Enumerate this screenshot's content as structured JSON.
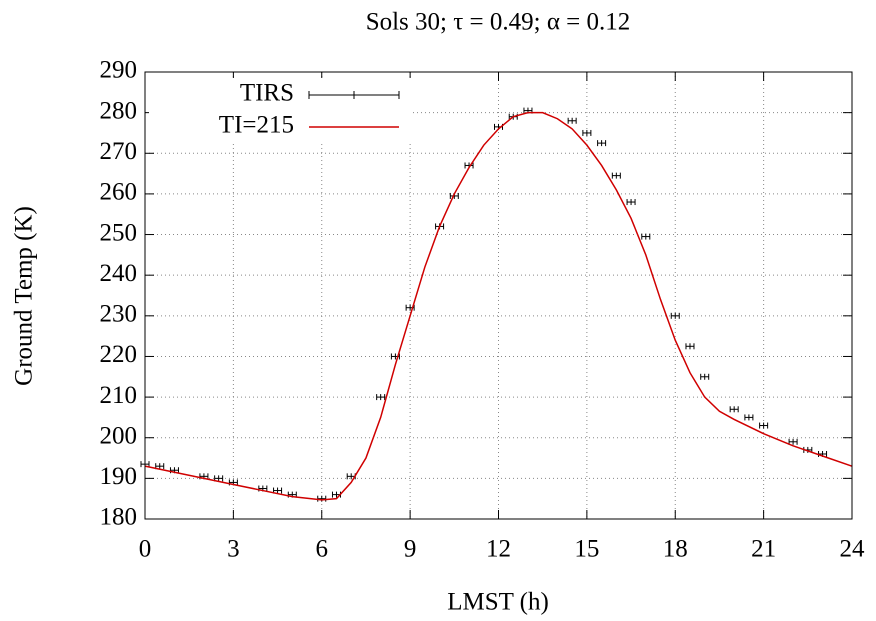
{
  "chart_data": {
    "type": "line",
    "title": "Sols 30; τ = 0.49; α = 0.12",
    "xlabel": "LMST (h)",
    "ylabel": "Ground Temp (K)",
    "xlim": [
      0,
      24
    ],
    "xticks": [
      0,
      3,
      6,
      9,
      12,
      15,
      18,
      21,
      24
    ],
    "ylim": [
      180,
      290
    ],
    "yticks": [
      180,
      190,
      200,
      210,
      220,
      230,
      240,
      250,
      260,
      270,
      280,
      290
    ],
    "grid": true,
    "legend": "top-left",
    "series": [
      {
        "name": "TIRS",
        "color": "#000000",
        "style": "points",
        "x": [
          0,
          0.5,
          1,
          2,
          2.5,
          3,
          4,
          4.5,
          5,
          6,
          6.5,
          7,
          8,
          8.5,
          9,
          10,
          10.5,
          11,
          12,
          12.5,
          13,
          14.5,
          15,
          15.5,
          16,
          16.5,
          17,
          18,
          18.5,
          19,
          20,
          20.5,
          21,
          22,
          22.5,
          23
        ],
        "values": [
          193.5,
          193,
          192,
          190.5,
          190,
          189,
          187.5,
          187,
          186,
          185,
          186,
          190.5,
          210,
          220,
          232,
          252,
          259.5,
          267,
          276.5,
          279,
          280.5,
          278,
          275,
          272.5,
          264.5,
          258,
          249.5,
          230,
          222.5,
          215,
          207,
          205,
          203,
          199,
          197,
          196
        ]
      },
      {
        "name": "TI=215",
        "color": "#d00000",
        "style": "line",
        "x": [
          0,
          1,
          2,
          3,
          4,
          5,
          6,
          6.5,
          7,
          7.5,
          8,
          8.5,
          9,
          9.5,
          10,
          10.5,
          11,
          11.5,
          12,
          12.5,
          13,
          13.5,
          14,
          14.5,
          15,
          15.5,
          16,
          16.5,
          17,
          17.5,
          18,
          18.5,
          19,
          19.5,
          20,
          21,
          22,
          23,
          24
        ],
        "values": [
          193,
          191.5,
          190,
          188.5,
          187,
          185.5,
          184.7,
          185,
          189,
          195,
          205,
          218,
          230,
          242,
          252,
          260,
          266.5,
          272,
          276,
          279,
          280,
          280,
          278.5,
          276,
          272,
          267,
          261,
          254,
          245,
          234,
          224,
          216,
          210,
          206.5,
          204.5,
          201,
          198,
          195.5,
          193
        ]
      }
    ]
  }
}
